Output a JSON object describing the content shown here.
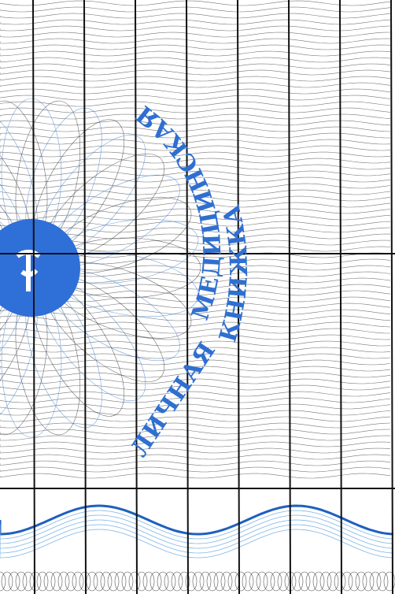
{
  "cover": {
    "line1": "ЛИЧНАЯ",
    "line2": "МЕДИЦИНСКАЯ",
    "line3": "КНИЖКА"
  }
}
